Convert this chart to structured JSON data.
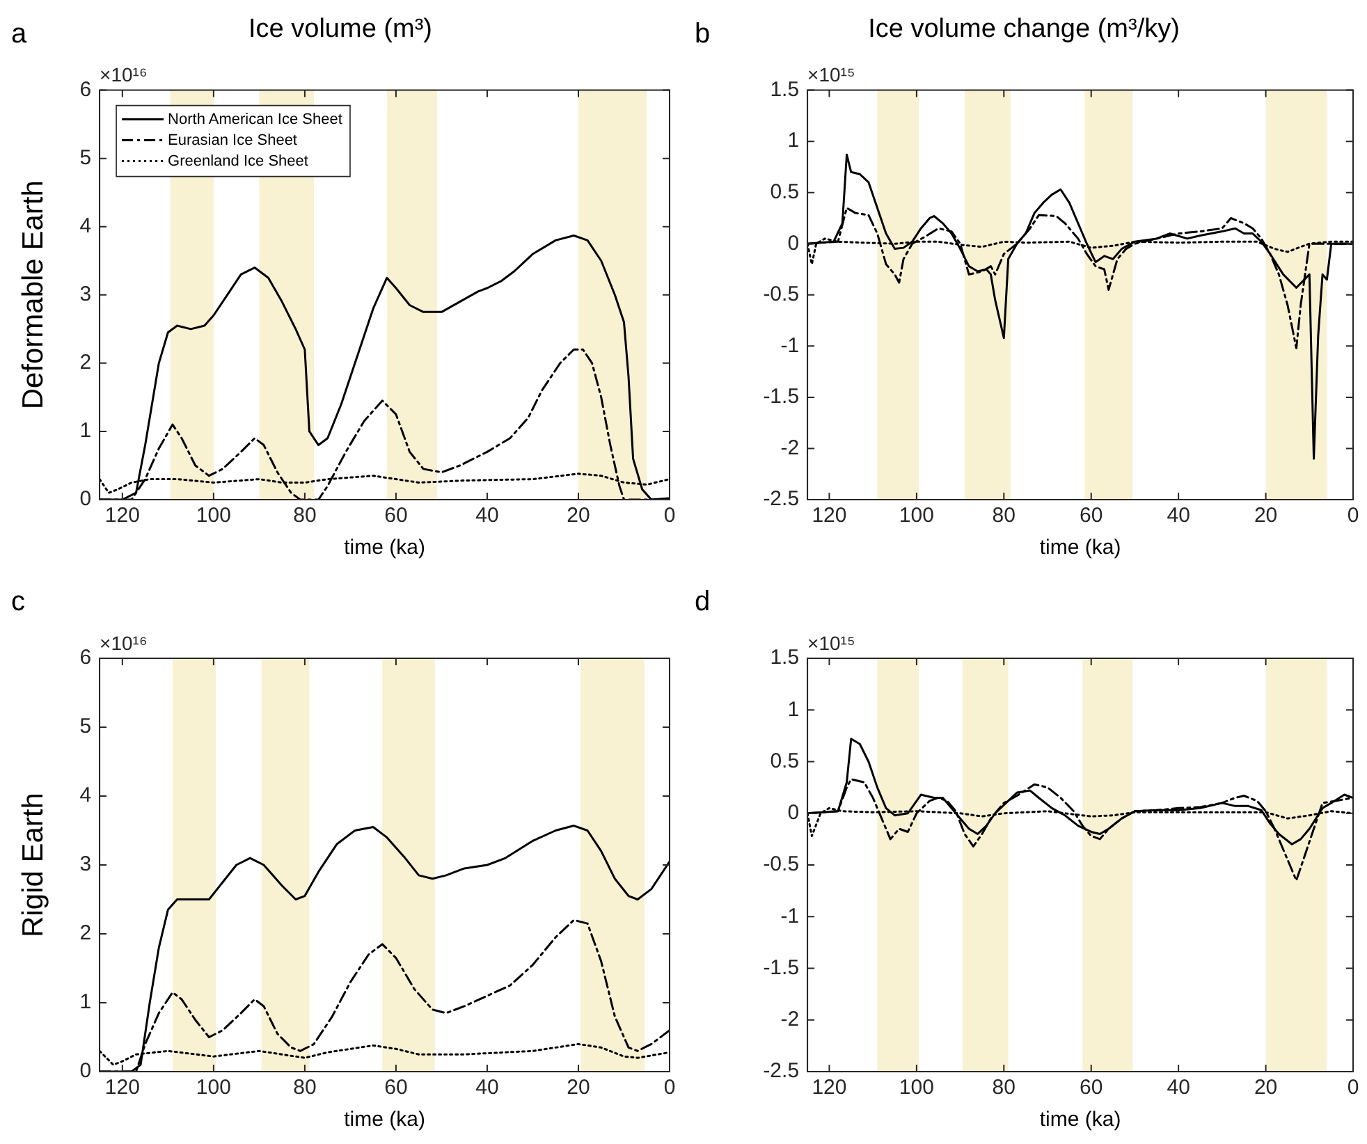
{
  "chart_data": [
    {
      "type": "line",
      "title": "Ice volume (m³)",
      "ylabel": "Deformable Earth",
      "xlabel": "time (ka)",
      "annotations": [
        "a",
        "×10¹⁶"
      ],
      "legend": "top left",
      "marker": "none",
      "xlim": [
        125,
        0
      ],
      "xticks": [
        120,
        100,
        80,
        60,
        40,
        20,
        0
      ],
      "ylim": [
        0,
        6
      ],
      "yticks": [
        0,
        1,
        2,
        3,
        4,
        5,
        6
      ],
      "bands": [
        {
          "axis": "x",
          "from": 109.5,
          "to": 100,
          "color": "#f8f1d2"
        },
        {
          "axis": "x",
          "from": 90,
          "to": 78,
          "color": "#f8f1d2"
        },
        {
          "axis": "x",
          "from": 62,
          "to": 51,
          "color": "#f8f1d2"
        },
        {
          "axis": "x",
          "from": 20,
          "to": 5,
          "color": "#f8f1d2"
        }
      ],
      "series": [
        {
          "name": "North American Ice Sheet",
          "color": "#000000",
          "line_style": "solid",
          "x": [
            125,
            120,
            117,
            115,
            112,
            110,
            108,
            105,
            102,
            100,
            97,
            94,
            91,
            88,
            85,
            82,
            80,
            79,
            77,
            75,
            72,
            68,
            65,
            62,
            60,
            57,
            54,
            50,
            46,
            42,
            40,
            37,
            34,
            30,
            25,
            21,
            18,
            15,
            12,
            10,
            9,
            8,
            6,
            4,
            0
          ],
          "values": [
            0,
            0,
            0.1,
            0.8,
            2.0,
            2.45,
            2.55,
            2.5,
            2.55,
            2.7,
            3.0,
            3.3,
            3.4,
            3.25,
            2.9,
            2.5,
            2.2,
            1.0,
            0.8,
            0.9,
            1.4,
            2.2,
            2.8,
            3.25,
            3.1,
            2.85,
            2.75,
            2.75,
            2.9,
            3.05,
            3.1,
            3.2,
            3.35,
            3.6,
            3.8,
            3.87,
            3.8,
            3.5,
            3.0,
            2.6,
            1.8,
            0.6,
            0.15,
            0,
            0.02
          ]
        },
        {
          "name": "Eurasian Ice Sheet",
          "color": "#000000",
          "line_style": "dashed",
          "x": [
            125,
            118,
            115,
            112,
            109,
            107,
            104,
            101,
            98,
            94,
            91,
            89,
            86,
            83,
            81,
            77,
            75,
            71,
            67,
            63,
            60,
            57,
            54,
            50,
            46,
            40,
            35,
            31,
            28,
            24,
            21,
            19,
            17,
            15,
            13,
            11,
            10,
            0
          ],
          "values": [
            0,
            0,
            0.3,
            0.75,
            1.1,
            0.9,
            0.5,
            0.35,
            0.45,
            0.7,
            0.9,
            0.8,
            0.4,
            0.1,
            0,
            0,
            0.2,
            0.7,
            1.15,
            1.45,
            1.25,
            0.7,
            0.45,
            0.4,
            0.5,
            0.7,
            0.9,
            1.2,
            1.6,
            2.0,
            2.2,
            2.2,
            2.0,
            1.5,
            0.8,
            0.2,
            0,
            0
          ]
        },
        {
          "name": "Greenland Ice Sheet",
          "color": "#000000",
          "line_style": "dotted",
          "x": [
            125,
            123,
            121,
            118,
            114,
            108,
            100,
            90,
            85,
            80,
            75,
            65,
            60,
            55,
            45,
            30,
            20,
            15,
            10,
            5,
            0
          ],
          "values": [
            0.3,
            0.1,
            0.15,
            0.25,
            0.3,
            0.3,
            0.25,
            0.3,
            0.25,
            0.25,
            0.3,
            0.35,
            0.3,
            0.25,
            0.28,
            0.3,
            0.38,
            0.35,
            0.25,
            0.22,
            0.3
          ]
        }
      ]
    },
    {
      "type": "line",
      "title": "Ice volume change (m³/ky)",
      "xlabel": "time (ka)",
      "annotations": [
        "b",
        "×10¹⁵"
      ],
      "marker": "none",
      "xlim": [
        125,
        0
      ],
      "xticks": [
        120,
        100,
        80,
        60,
        40,
        20,
        0
      ],
      "ylim": [
        -2.5,
        1.5
      ],
      "yticks": [
        -2.5,
        -2,
        -1.5,
        -1,
        -0.5,
        0,
        0.5,
        1,
        1.5
      ],
      "bands": [
        {
          "axis": "x",
          "from": 109,
          "to": 99.5,
          "color": "#f8f1d2"
        },
        {
          "axis": "x",
          "from": 89,
          "to": 78.5,
          "color": "#f8f1d2"
        },
        {
          "axis": "x",
          "from": 61.5,
          "to": 50.5,
          "color": "#f8f1d2"
        },
        {
          "axis": "x",
          "from": 20,
          "to": 6,
          "color": "#f8f1d2"
        }
      ],
      "series": [
        {
          "color": "#000000",
          "line_style": "solid",
          "x": [
            125,
            119,
            117,
            116,
            115,
            113,
            111,
            109,
            107,
            105,
            103,
            101,
            99,
            97,
            96,
            94,
            92,
            90,
            88,
            86,
            84,
            83,
            82,
            80,
            79,
            77,
            75,
            73,
            71,
            69,
            67,
            65,
            63,
            61,
            59,
            57,
            55,
            53,
            50,
            45,
            42,
            38,
            35,
            30,
            27,
            25,
            23,
            21,
            19,
            16,
            13,
            10,
            9,
            8,
            7,
            6,
            5,
            0
          ],
          "values": [
            0,
            0.02,
            0.2,
            0.87,
            0.7,
            0.68,
            0.6,
            0.35,
            0.1,
            -0.05,
            -0.04,
            0.02,
            0.15,
            0.25,
            0.27,
            0.2,
            0.1,
            -0.05,
            -0.22,
            -0.27,
            -0.25,
            -0.3,
            -0.55,
            -0.92,
            -0.15,
            0,
            0.1,
            0.3,
            0.4,
            0.48,
            0.53,
            0.4,
            0.2,
            0,
            -0.18,
            -0.12,
            -0.15,
            -0.05,
            0.02,
            0.05,
            0.1,
            0.05,
            0.08,
            0.12,
            0.15,
            0.1,
            0.1,
            0.02,
            -0.1,
            -0.3,
            -0.43,
            -0.3,
            -2.1,
            -0.9,
            -0.3,
            -0.35,
            0,
            0
          ]
        },
        {
          "color": "#000000",
          "line_style": "dashed",
          "x": [
            125,
            118,
            116,
            114,
            111,
            109,
            107,
            105,
            104,
            103,
            101,
            98,
            95,
            92,
            90,
            88,
            85,
            83,
            82,
            80,
            77,
            74,
            72,
            68,
            66,
            63,
            61,
            59,
            57,
            56,
            54,
            52,
            50,
            45,
            40,
            35,
            30,
            28,
            25,
            23,
            21,
            19,
            17,
            15,
            13,
            12,
            11,
            10,
            0
          ],
          "values": [
            0,
            0.02,
            0.35,
            0.3,
            0.28,
            0.1,
            -0.2,
            -0.3,
            -0.38,
            -0.15,
            0,
            0.07,
            0.15,
            0.12,
            0,
            -0.3,
            -0.27,
            -0.22,
            -0.3,
            -0.1,
            0,
            0.15,
            0.28,
            0.27,
            0.2,
            0.05,
            -0.1,
            -0.22,
            -0.25,
            -0.45,
            -0.15,
            -0.05,
            0,
            0.05,
            0.1,
            0.12,
            0.15,
            0.25,
            0.2,
            0.15,
            0.05,
            -0.1,
            -0.3,
            -0.6,
            -1.02,
            -0.6,
            -0.3,
            0,
            0
          ]
        },
        {
          "color": "#000000",
          "line_style": "dotted",
          "x": [
            125,
            124,
            123,
            121,
            118,
            112,
            105,
            100,
            95,
            90,
            85,
            80,
            75,
            65,
            60,
            55,
            50,
            40,
            30,
            22,
            18,
            15,
            12,
            10,
            5,
            0
          ],
          "values": [
            0,
            -0.2,
            0,
            0.05,
            0.02,
            0.01,
            0,
            0.02,
            0.02,
            -0.01,
            -0.03,
            0.02,
            0.01,
            0.02,
            -0.04,
            -0.02,
            0.02,
            0.01,
            0.02,
            0.02,
            -0.05,
            -0.08,
            -0.03,
            0,
            0.02,
            0.02
          ]
        }
      ]
    },
    {
      "type": "line",
      "ylabel": "Rigid Earth",
      "xlabel": "time (ka)",
      "annotations": [
        "c",
        "×10¹⁶"
      ],
      "marker": "none",
      "xlim": [
        125,
        0
      ],
      "xticks": [
        120,
        100,
        80,
        60,
        40,
        20,
        0
      ],
      "ylim": [
        0,
        6
      ],
      "yticks": [
        0,
        1,
        2,
        3,
        4,
        5,
        6
      ],
      "bands": [
        {
          "axis": "x",
          "from": 109,
          "to": 99.5,
          "color": "#f8f1d2"
        },
        {
          "axis": "x",
          "from": 89.5,
          "to": 79,
          "color": "#f8f1d2"
        },
        {
          "axis": "x",
          "from": 63,
          "to": 51.5,
          "color": "#f8f1d2"
        },
        {
          "axis": "x",
          "from": 19.5,
          "to": 5.5,
          "color": "#f8f1d2"
        }
      ],
      "series": [
        {
          "color": "#000000",
          "line_style": "solid",
          "x": [
            125,
            118,
            116,
            114,
            112,
            110,
            108,
            104,
            101,
            98,
            95,
            92,
            89,
            85,
            82,
            80,
            77,
            73,
            69,
            65,
            62,
            58,
            55,
            52,
            49,
            45,
            40,
            36,
            30,
            25,
            21,
            18,
            15,
            12,
            9,
            7,
            4,
            0
          ],
          "values": [
            0,
            0,
            0.1,
            1.0,
            1.8,
            2.35,
            2.5,
            2.5,
            2.5,
            2.75,
            3.0,
            3.1,
            3.0,
            2.7,
            2.5,
            2.55,
            2.9,
            3.3,
            3.5,
            3.55,
            3.4,
            3.1,
            2.85,
            2.8,
            2.85,
            2.95,
            3.0,
            3.1,
            3.35,
            3.5,
            3.57,
            3.5,
            3.2,
            2.8,
            2.55,
            2.5,
            2.65,
            3.05
          ]
        },
        {
          "color": "#000000",
          "line_style": "dashed",
          "x": [
            125,
            117,
            115,
            112,
            109,
            107,
            104,
            101,
            98,
            94,
            91,
            89,
            86,
            83,
            81,
            78,
            74,
            70,
            66,
            63,
            60,
            56,
            52,
            49,
            45,
            40,
            35,
            30,
            25,
            21,
            18,
            15,
            12,
            9,
            7,
            4,
            0
          ],
          "values": [
            0,
            0,
            0.4,
            0.85,
            1.15,
            1.05,
            0.75,
            0.5,
            0.6,
            0.85,
            1.05,
            0.95,
            0.55,
            0.35,
            0.3,
            0.4,
            0.8,
            1.3,
            1.7,
            1.85,
            1.65,
            1.2,
            0.9,
            0.85,
            0.95,
            1.1,
            1.25,
            1.55,
            1.95,
            2.2,
            2.15,
            1.6,
            0.8,
            0.35,
            0.3,
            0.4,
            0.6
          ]
        },
        {
          "color": "#000000",
          "line_style": "dotted",
          "x": [
            125,
            122,
            120,
            117,
            110,
            100,
            90,
            85,
            80,
            75,
            65,
            60,
            55,
            45,
            30,
            20,
            15,
            10,
            7,
            0
          ],
          "values": [
            0.3,
            0.1,
            0.15,
            0.25,
            0.3,
            0.22,
            0.3,
            0.25,
            0.2,
            0.28,
            0.38,
            0.33,
            0.25,
            0.25,
            0.3,
            0.4,
            0.35,
            0.22,
            0.2,
            0.28
          ]
        }
      ]
    },
    {
      "type": "line",
      "xlabel": "time (ka)",
      "annotations": [
        "d",
        "×10¹⁵"
      ],
      "marker": "none",
      "xlim": [
        125,
        0
      ],
      "xticks": [
        120,
        100,
        80,
        60,
        40,
        20,
        0
      ],
      "ylim": [
        -2.5,
        1.5
      ],
      "yticks": [
        -2.5,
        -2,
        -1.5,
        -1,
        -0.5,
        0,
        0.5,
        1,
        1.5
      ],
      "bands": [
        {
          "axis": "x",
          "from": 109,
          "to": 99.5,
          "color": "#f8f1d2"
        },
        {
          "axis": "x",
          "from": 89.5,
          "to": 79,
          "color": "#f8f1d2"
        },
        {
          "axis": "x",
          "from": 62,
          "to": 50.5,
          "color": "#f8f1d2"
        },
        {
          "axis": "x",
          "from": 20,
          "to": 6,
          "color": "#f8f1d2"
        }
      ],
      "series": [
        {
          "color": "#000000",
          "line_style": "solid",
          "x": [
            125,
            118,
            116,
            115,
            113,
            111,
            109,
            107,
            105,
            102,
            99,
            96,
            94,
            92,
            90,
            88,
            86,
            84,
            82,
            79,
            77,
            74,
            72,
            69,
            66,
            63,
            60,
            58,
            56,
            53,
            50,
            45,
            40,
            35,
            30,
            27,
            24,
            21,
            19,
            17,
            14,
            12,
            10,
            7,
            5,
            2,
            0
          ],
          "values": [
            0,
            0.02,
            0.3,
            0.72,
            0.67,
            0.5,
            0.25,
            0.05,
            -0.02,
            0,
            0.18,
            0.15,
            0.15,
            0.05,
            -0.05,
            -0.15,
            -0.2,
            -0.12,
            0,
            0.12,
            0.2,
            0.22,
            0.15,
            0.05,
            -0.02,
            -0.12,
            -0.18,
            -0.2,
            -0.15,
            -0.05,
            0.02,
            0.03,
            0.03,
            0.05,
            0.1,
            0.07,
            0.07,
            0.03,
            -0.1,
            -0.2,
            -0.3,
            -0.25,
            -0.15,
            0.05,
            0.1,
            0.18,
            0.15
          ]
        },
        {
          "color": "#000000",
          "line_style": "dashed",
          "x": [
            125,
            118,
            116,
            115,
            112,
            110,
            108,
            106,
            104,
            102,
            100,
            97,
            95,
            93,
            91,
            89,
            87,
            85,
            83,
            80,
            77,
            73,
            70,
            67,
            64,
            62,
            60,
            58,
            56,
            53,
            50,
            45,
            40,
            35,
            30,
            27,
            25,
            22,
            20,
            18,
            16,
            13,
            11,
            9,
            7,
            4,
            0
          ],
          "values": [
            0,
            0.02,
            0.25,
            0.33,
            0.3,
            0.15,
            -0.05,
            -0.25,
            -0.15,
            -0.18,
            0,
            0.12,
            0.15,
            0.12,
            0.02,
            -0.2,
            -0.32,
            -0.2,
            -0.05,
            0.1,
            0.17,
            0.28,
            0.25,
            0.15,
            0.02,
            -0.12,
            -0.22,
            -0.25,
            -0.15,
            -0.05,
            0.02,
            0.03,
            0.05,
            0.06,
            0.1,
            0.15,
            0.17,
            0.12,
            0.02,
            -0.15,
            -0.35,
            -0.65,
            -0.4,
            -0.15,
            0.1,
            0.12,
            0.15
          ]
        },
        {
          "color": "#000000",
          "line_style": "dotted",
          "x": [
            125,
            124,
            122,
            120,
            117,
            110,
            100,
            90,
            85,
            80,
            70,
            60,
            55,
            50,
            40,
            30,
            20,
            15,
            10,
            5,
            0
          ],
          "values": [
            0,
            -0.22,
            0,
            0.05,
            0.02,
            0.01,
            0.02,
            0,
            -0.03,
            0,
            0.02,
            -0.03,
            -0.02,
            0.01,
            0.01,
            0.01,
            0.01,
            -0.05,
            -0.02,
            0.02,
            0
          ]
        }
      ]
    }
  ]
}
